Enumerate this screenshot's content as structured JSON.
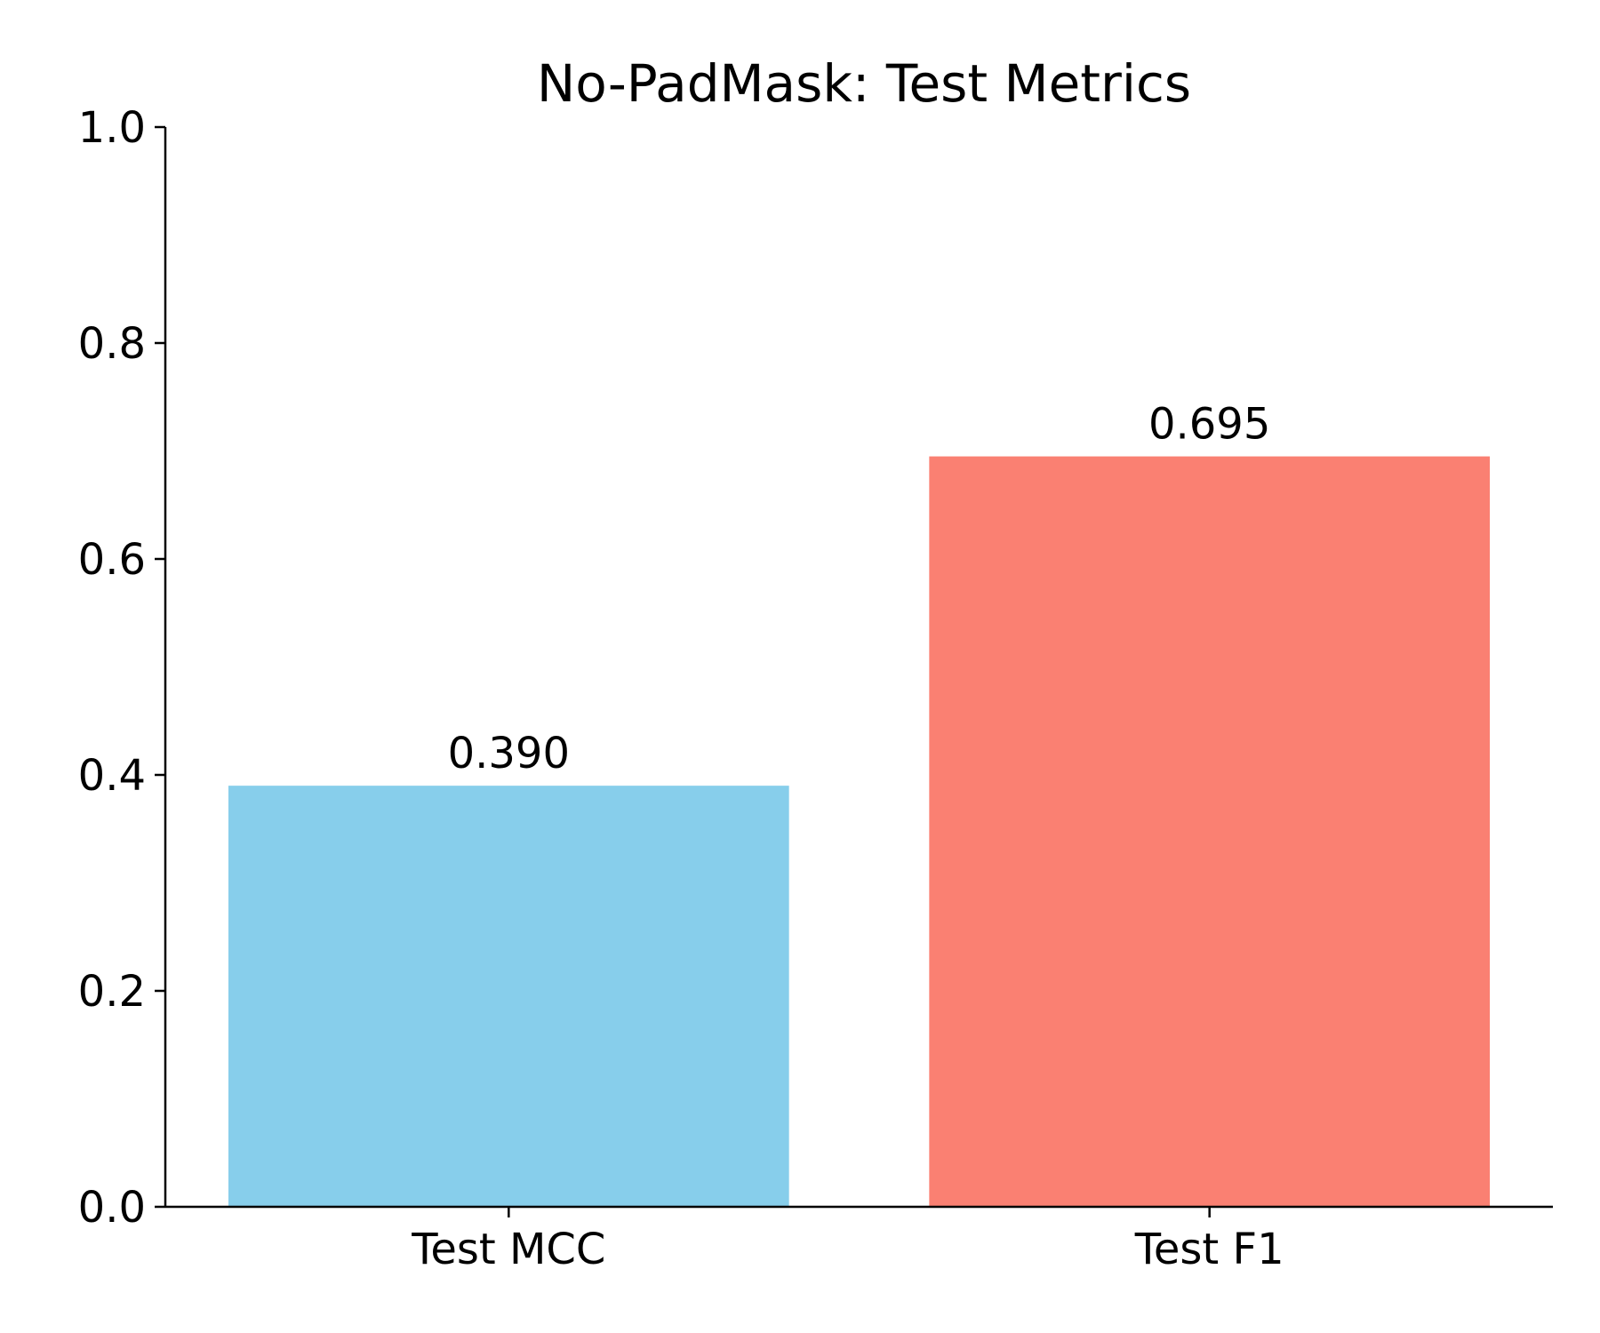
{
  "chart_data": {
    "type": "bar",
    "title": "No-PadMask: Test Metrics",
    "xlabel": "",
    "ylabel": "",
    "categories": [
      "Test MCC",
      "Test F1"
    ],
    "values": [
      0.39,
      0.695
    ],
    "value_labels": [
      "0.390",
      "0.695"
    ],
    "colors": [
      "#87CEEB",
      "#FA8072"
    ],
    "ylim": [
      0,
      1.0
    ],
    "yticks": [
      0.0,
      0.2,
      0.4,
      0.6,
      0.8,
      1.0
    ],
    "ytick_labels": [
      "0.0",
      "0.2",
      "0.4",
      "0.6",
      "0.8",
      "1.0"
    ],
    "grid": false,
    "legend": "none",
    "spines": "left-bottom"
  }
}
